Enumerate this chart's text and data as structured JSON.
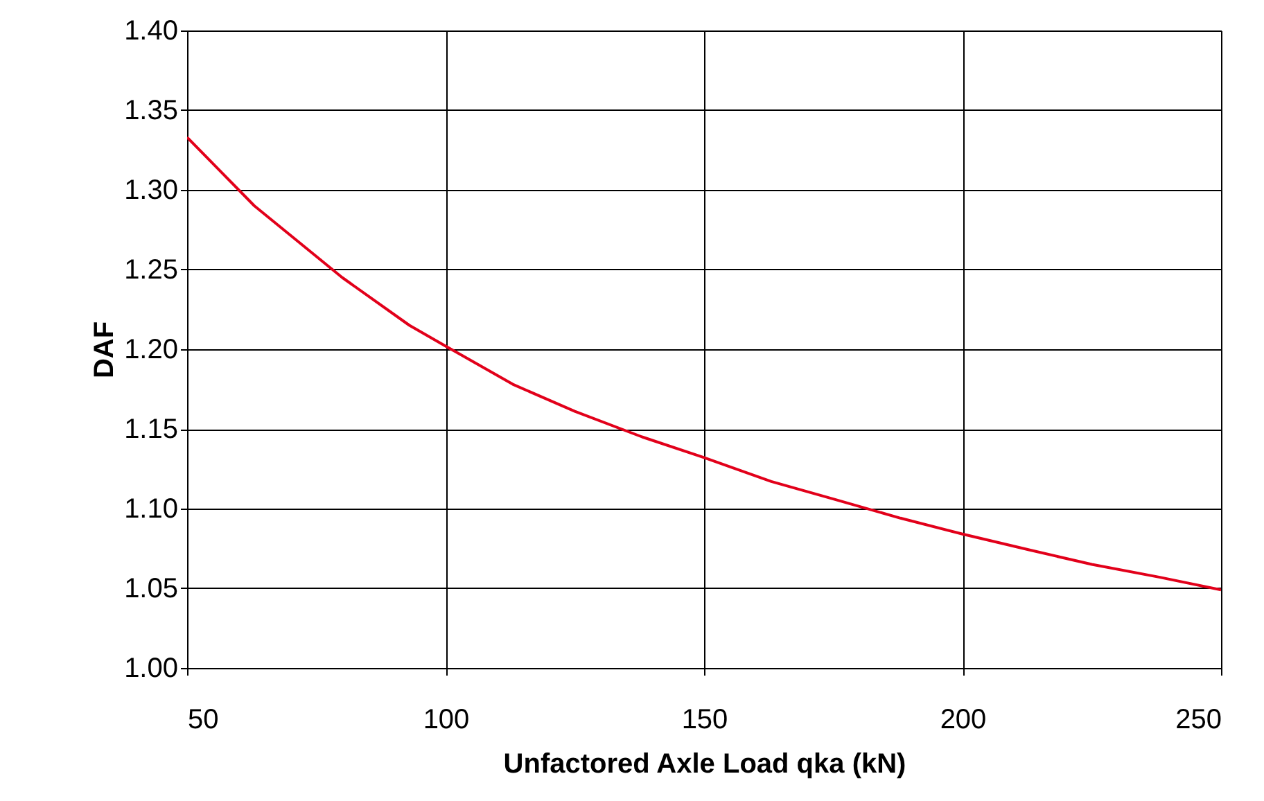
{
  "chart_data": {
    "type": "line",
    "xlabel": "Unfactored Axle Load qka (kN)",
    "ylabel": "DAF",
    "x": [
      50,
      63,
      80,
      93,
      100,
      113,
      125,
      138,
      150,
      163,
      175,
      188,
      200,
      213,
      225,
      238,
      250
    ],
    "series": [
      {
        "color": "#e2001a",
        "values": [
          1.333,
          1.29,
          1.245,
          1.215,
          1.202,
          1.178,
          1.161,
          1.145,
          1.132,
          1.117,
          1.106,
          1.094,
          1.084,
          1.074,
          1.065,
          1.057,
          1.049
        ]
      }
    ],
    "xlim": [
      50,
      250
    ],
    "xticks": [
      50,
      100,
      150,
      200,
      250
    ],
    "ylim": [
      1.0,
      1.4
    ],
    "yticks": [
      {
        "value": 1.0,
        "label": "1.00"
      },
      {
        "value": 1.05,
        "label": "1.05"
      },
      {
        "value": 1.1,
        "label": "1.10"
      },
      {
        "value": 1.15,
        "label": "1.15"
      },
      {
        "value": 1.2,
        "label": "1.20"
      },
      {
        "value": 1.25,
        "label": "1.25"
      },
      {
        "value": 1.3,
        "label": "1.30"
      },
      {
        "value": 1.35,
        "label": "1.35"
      },
      {
        "value": 1.4,
        "label": "1.40"
      }
    ],
    "grid": true,
    "marker": "none",
    "line_style": "solid"
  }
}
